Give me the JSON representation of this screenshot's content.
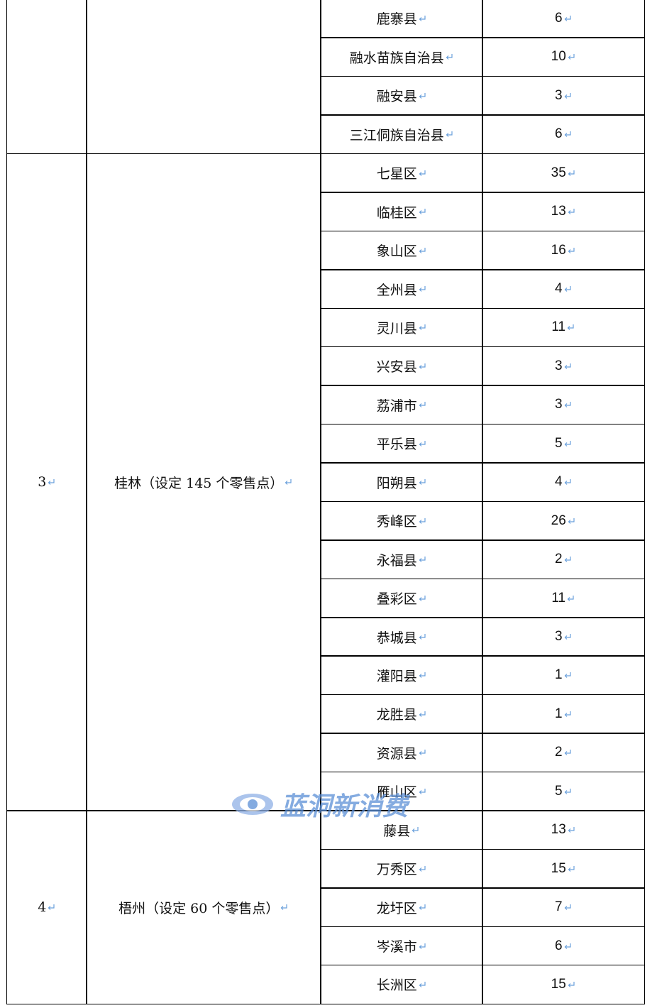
{
  "table": {
    "groups": [
      {
        "districts": [
          {
            "name": "鹿寨县",
            "count": 6
          },
          {
            "name": "融水苗族自治县",
            "count": 10
          },
          {
            "name": "融安县",
            "count": 3
          },
          {
            "name": "三江侗族自治县",
            "count": 6
          }
        ]
      },
      {
        "number": "3",
        "city": "桂林（设定 145 个零售点）",
        "districts": [
          {
            "name": "七星区",
            "count": 35
          },
          {
            "name": "临桂区",
            "count": 13
          },
          {
            "name": "象山区",
            "count": 16
          },
          {
            "name": "全州县",
            "count": 4
          },
          {
            "name": "灵川县",
            "count": 11
          },
          {
            "name": "兴安县",
            "count": 3
          },
          {
            "name": "荔浦市",
            "count": 3
          },
          {
            "name": "平乐县",
            "count": 5
          },
          {
            "name": "阳朔县",
            "count": 4
          },
          {
            "name": "秀峰区",
            "count": 26
          },
          {
            "name": "永福县",
            "count": 2
          },
          {
            "name": "叠彩区",
            "count": 11
          },
          {
            "name": "恭城县",
            "count": 3
          },
          {
            "name": "灌阳县",
            "count": 1
          },
          {
            "name": "龙胜县",
            "count": 1
          },
          {
            "name": "资源县",
            "count": 2
          },
          {
            "name": "雁山区",
            "count": 5
          }
        ]
      },
      {
        "number": "4",
        "city": "梧州（设定 60 个零售点）",
        "districts": [
          {
            "name": "藤县",
            "count": 13
          },
          {
            "name": "万秀区",
            "count": 15
          },
          {
            "name": "龙圩区",
            "count": 7
          },
          {
            "name": "岑溪市",
            "count": 6
          },
          {
            "name": "长洲区",
            "count": 15
          }
        ]
      }
    ]
  },
  "watermark": "蓝洞新消费"
}
